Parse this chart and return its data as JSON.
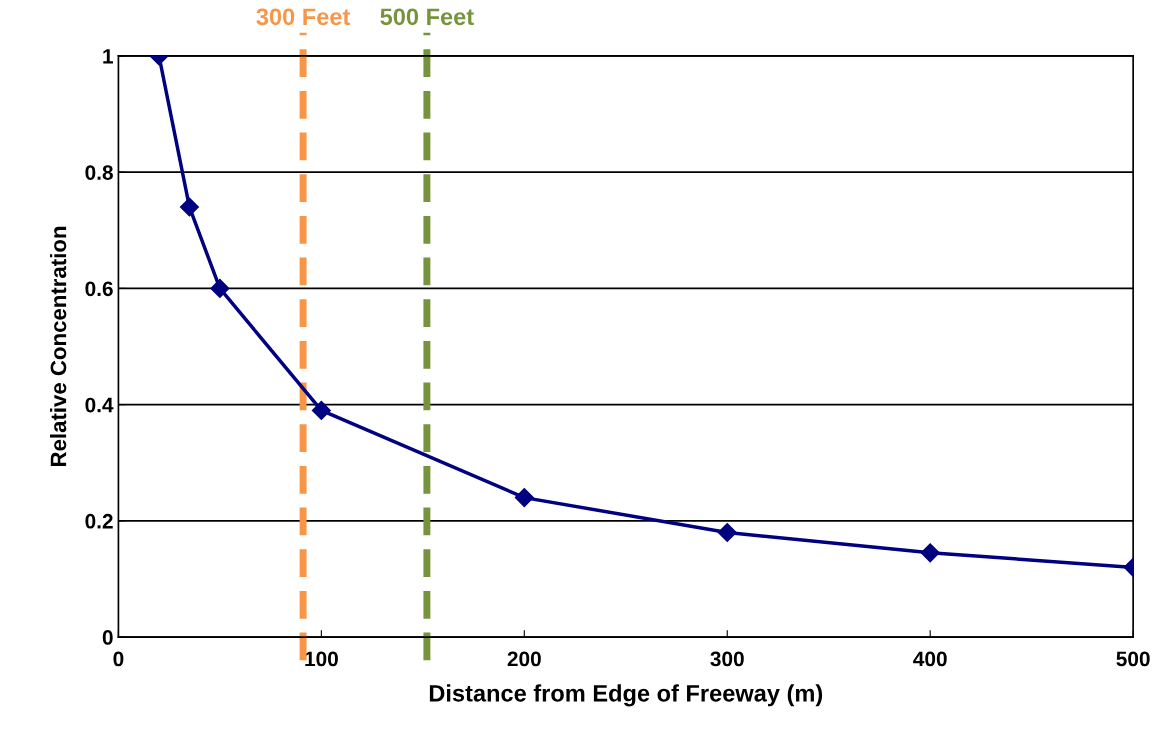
{
  "chart_data": {
    "type": "line",
    "xlabel": "Distance from Edge of Freeway (m)",
    "ylabel": "Relative Concentration",
    "x": [
      20,
      35,
      50,
      100,
      200,
      300,
      400,
      500
    ],
    "series": [
      {
        "color": "#000080",
        "values": [
          1.0,
          0.74,
          0.6,
          0.39,
          0.24,
          0.18,
          0.145,
          0.12
        ]
      }
    ],
    "xlim": [
      0,
      500
    ],
    "xticks": [
      0,
      100,
      200,
      300,
      400,
      500
    ],
    "ylim": [
      0,
      1
    ],
    "yticks": [
      0,
      0.2,
      0.4,
      0.6,
      0.8,
      1
    ],
    "grid": "y",
    "marker": "diamond",
    "line_style": "solid",
    "ref_lines": [
      {
        "axis": "x",
        "value": 91,
        "label": "300 Feet",
        "color": "#f79646",
        "line_style": "dashed"
      },
      {
        "axis": "x",
        "value": 152,
        "label": "500 Feet",
        "color": "#77933c",
        "line_style": "dashed"
      }
    ]
  }
}
